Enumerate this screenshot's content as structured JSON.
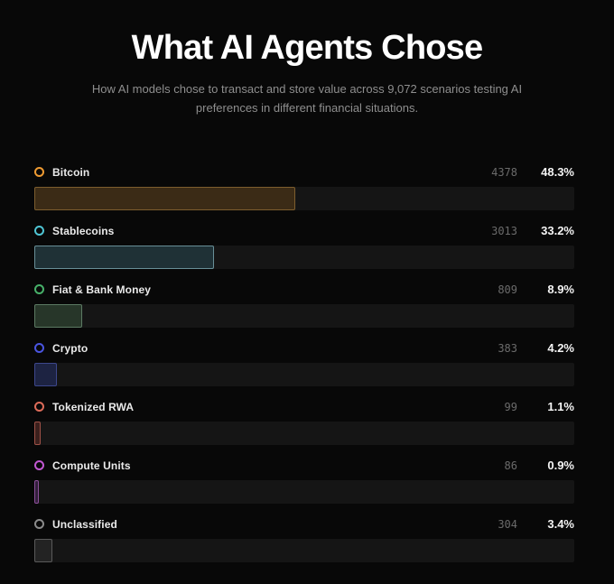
{
  "header": {
    "title": "What AI Agents Chose",
    "subtitle": "How AI models chose to transact and store value across 9,072 scenarios testing AI preferences in different financial situations."
  },
  "chart_data": {
    "type": "bar",
    "orientation": "horizontal",
    "title": "What AI Agents Chose",
    "subtitle": "How AI models chose to transact and store value across 9,072 scenarios testing AI preferences in different financial situations.",
    "total_scenarios_label": "9,072",
    "value_axis": {
      "unit": "percent",
      "min": 0,
      "max": 100
    },
    "categories": [
      "Bitcoin",
      "Stablecoins",
      "Fiat & Bank Money",
      "Crypto",
      "Tokenized RWA",
      "Compute Units",
      "Unclassified"
    ],
    "counts": [
      4378,
      3013,
      809,
      383,
      99,
      86,
      304
    ],
    "percents": [
      48.3,
      33.2,
      8.9,
      4.2,
      1.1,
      0.9,
      3.4
    ],
    "rows": [
      {
        "label": "Bitcoin",
        "count": "4378",
        "percent": 48.3,
        "percent_label": "48.3%",
        "colors": {
          "ring": "#ef9b32",
          "bar_border": "#7d5e2e",
          "bar_fill": "#3b2b16"
        }
      },
      {
        "label": "Stablecoins",
        "count": "3013",
        "percent": 33.2,
        "percent_label": "33.2%",
        "colors": {
          "ring": "#4fc6d5",
          "bar_border": "#688f97",
          "bar_fill": "#1f3136"
        }
      },
      {
        "label": "Fiat & Bank Money",
        "count": "809",
        "percent": 8.9,
        "percent_label": "8.9%",
        "colors": {
          "ring": "#47b069",
          "bar_border": "#5c7a63",
          "bar_fill": "#273629"
        }
      },
      {
        "label": "Crypto",
        "count": "383",
        "percent": 4.2,
        "percent_label": "4.2%",
        "colors": {
          "ring": "#4a55e0",
          "bar_border": "#3d478c",
          "bar_fill": "#1d2342"
        }
      },
      {
        "label": "Tokenized RWA",
        "count": "99",
        "percent": 1.1,
        "percent_label": "1.1%",
        "colors": {
          "ring": "#dd6b59",
          "bar_border": "#9e5147",
          "bar_fill": "#3b201d"
        }
      },
      {
        "label": "Compute Units",
        "count": "86",
        "percent": 0.9,
        "percent_label": "0.9%",
        "colors": {
          "ring": "#c258d2",
          "bar_border": "#8c4f9a",
          "bar_fill": "#321f3a"
        }
      },
      {
        "label": "Unclassified",
        "count": "304",
        "percent": 3.4,
        "percent_label": "3.4%",
        "colors": {
          "ring": "#8b8b8b",
          "bar_border": "#5a5a5a",
          "bar_fill": "#232323"
        }
      }
    ]
  }
}
